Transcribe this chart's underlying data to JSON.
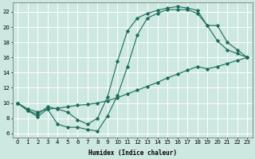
{
  "xlabel": "Humidex (Indice chaleur)",
  "bg_color": "#cce8e0",
  "grid_color": "#ffffff",
  "line_color": "#1a6b5a",
  "xlim": [
    -0.5,
    23.5
  ],
  "ylim": [
    5.5,
    23.2
  ],
  "xticks": [
    0,
    1,
    2,
    3,
    4,
    5,
    6,
    7,
    8,
    9,
    10,
    11,
    12,
    13,
    14,
    15,
    16,
    17,
    18,
    19,
    20,
    21,
    22,
    23
  ],
  "yticks": [
    6,
    8,
    10,
    12,
    14,
    16,
    18,
    20,
    22
  ],
  "line1_x": [
    0,
    1,
    2,
    3,
    4,
    5,
    6,
    7,
    8,
    9,
    10,
    11,
    12,
    13,
    14,
    15,
    16,
    17,
    18,
    19,
    20,
    21,
    22,
    23
  ],
  "line1_y": [
    10,
    9,
    8.2,
    9.2,
    7.2,
    6.8,
    6.8,
    6.5,
    6.3,
    8.3,
    11.0,
    14.8,
    19.0,
    21.2,
    21.8,
    22.3,
    22.3,
    22.3,
    21.8,
    20.2,
    18.2,
    17.0,
    16.5,
    16.0
  ],
  "line2_x": [
    0,
    1,
    2,
    3,
    4,
    5,
    6,
    7,
    8,
    9,
    10,
    11,
    12,
    13,
    14,
    15,
    16,
    17,
    18,
    19,
    20,
    21,
    22,
    23
  ],
  "line2_y": [
    10,
    9,
    8.5,
    9.5,
    9.2,
    8.8,
    7.8,
    7.2,
    8.0,
    10.8,
    15.5,
    19.5,
    21.2,
    21.8,
    22.2,
    22.5,
    22.7,
    22.5,
    22.2,
    20.2,
    20.2,
    18.0,
    17.0,
    16.0
  ],
  "line3_x": [
    0,
    1,
    2,
    3,
    4,
    5,
    6,
    7,
    8,
    9,
    10,
    11,
    12,
    13,
    14,
    15,
    16,
    17,
    18,
    19,
    20,
    21,
    22,
    23
  ],
  "line3_y": [
    10,
    9.2,
    8.8,
    9.2,
    9.3,
    9.5,
    9.7,
    9.8,
    10.0,
    10.3,
    10.7,
    11.2,
    11.7,
    12.2,
    12.7,
    13.3,
    13.8,
    14.3,
    14.8,
    14.5,
    14.8,
    15.2,
    15.6,
    16.0
  ],
  "xlabel_fontsize": 5.5,
  "tick_fontsize": 5.0
}
